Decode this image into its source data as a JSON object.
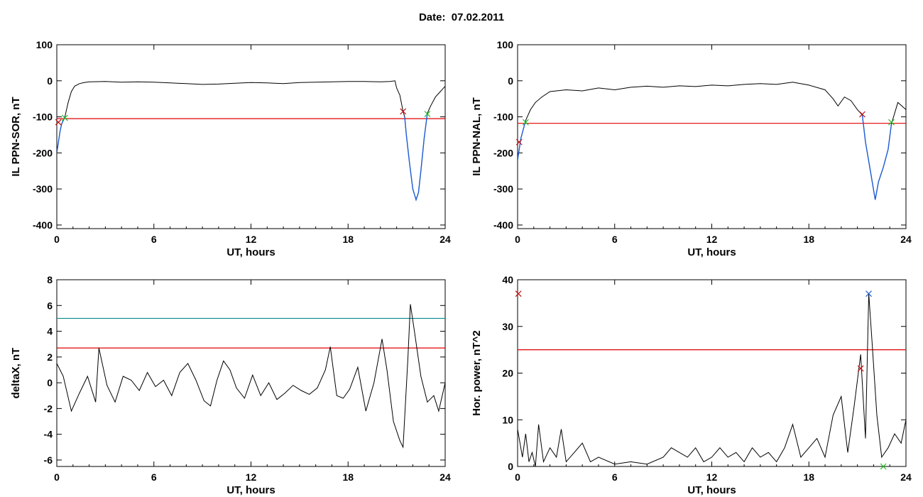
{
  "header": {
    "title": "Date:  07.02.2011"
  },
  "colors": {
    "curve": "#000000",
    "threshold_red": "#e00000",
    "threshold_teal": "#0a8c8c",
    "highlight_blue": "#1f5fd6",
    "marker_red": "#c01010",
    "marker_green": "#22bb22",
    "marker_blue": "#1f5fd6"
  },
  "chart_data": [
    {
      "type": "line",
      "xlabel": "UT, hours",
      "ylabel": "IL PPN-SOR, nT",
      "xlim": [
        0,
        24
      ],
      "ylim": [
        -410,
        100
      ],
      "xticks": [
        0,
        6,
        12,
        18,
        24
      ],
      "yticks": [
        100,
        0,
        -100,
        -200,
        -300,
        -400
      ],
      "series": [
        {
          "values": [
            [
              0,
              -200
            ],
            [
              0.1,
              -170
            ],
            [
              0.2,
              -140
            ],
            [
              0.3,
              -120
            ],
            [
              0.5,
              -100
            ],
            [
              0.7,
              -60
            ],
            [
              0.9,
              -30
            ],
            [
              1.1,
              -15
            ],
            [
              1.4,
              -8
            ],
            [
              1.7,
              -5
            ],
            [
              2,
              -3
            ],
            [
              3,
              -2
            ],
            [
              4,
              -4
            ],
            [
              5,
              -3
            ],
            [
              6,
              -4
            ],
            [
              7,
              -6
            ],
            [
              8,
              -8
            ],
            [
              9,
              -10
            ],
            [
              10,
              -9
            ],
            [
              11,
              -7
            ],
            [
              12,
              -5
            ],
            [
              13,
              -6
            ],
            [
              14,
              -8
            ],
            [
              15,
              -5
            ],
            [
              16,
              -4
            ],
            [
              17,
              -3
            ],
            [
              18,
              -2
            ],
            [
              19,
              -2
            ],
            [
              20,
              -3
            ],
            [
              20.6,
              -2
            ],
            [
              20.9,
              0
            ],
            [
              21.0,
              -20
            ],
            [
              21.2,
              -40
            ],
            [
              21.4,
              -85
            ],
            [
              21.5,
              -100
            ],
            [
              21.6,
              -150
            ],
            [
              21.8,
              -230
            ],
            [
              22.0,
              -300
            ],
            [
              22.2,
              -330
            ],
            [
              22.35,
              -310
            ],
            [
              22.5,
              -250
            ],
            [
              22.7,
              -160
            ],
            [
              22.9,
              -90
            ],
            [
              23.1,
              -70
            ],
            [
              23.4,
              -45
            ],
            [
              23.7,
              -30
            ],
            [
              24,
              -15
            ]
          ]
        }
      ],
      "threshold": -105
    },
    {
      "type": "line",
      "xlabel": "UT, hours",
      "ylabel": "IL PPN-NAL, nT",
      "xlim": [
        0,
        24
      ],
      "ylim": [
        -410,
        100
      ],
      "xticks": [
        0,
        6,
        12,
        18,
        24
      ],
      "yticks": [
        100,
        0,
        -100,
        -200,
        -300,
        -400
      ],
      "series": [
        {
          "values": [
            [
              0,
              -220
            ],
            [
              0.2,
              -160
            ],
            [
              0.5,
              -110
            ],
            [
              0.8,
              -80
            ],
            [
              1.1,
              -60
            ],
            [
              1.5,
              -45
            ],
            [
              2,
              -30
            ],
            [
              3,
              -25
            ],
            [
              4,
              -28
            ],
            [
              5,
              -20
            ],
            [
              6,
              -25
            ],
            [
              7,
              -18
            ],
            [
              8,
              -15
            ],
            [
              9,
              -18
            ],
            [
              10,
              -14
            ],
            [
              11,
              -16
            ],
            [
              12,
              -12
            ],
            [
              13,
              -14
            ],
            [
              14,
              -10
            ],
            [
              15,
              -8
            ],
            [
              16,
              -10
            ],
            [
              17,
              -4
            ],
            [
              18,
              -12
            ],
            [
              19,
              -25
            ],
            [
              19.5,
              -50
            ],
            [
              19.8,
              -70
            ],
            [
              20.2,
              -45
            ],
            [
              20.6,
              -55
            ],
            [
              21.0,
              -80
            ],
            [
              21.3,
              -95
            ],
            [
              21.5,
              -170
            ],
            [
              21.8,
              -250
            ],
            [
              22.1,
              -330
            ],
            [
              22.3,
              -280
            ],
            [
              22.6,
              -240
            ],
            [
              22.9,
              -190
            ],
            [
              23.1,
              -120
            ],
            [
              23.5,
              -60
            ],
            [
              24,
              -80
            ]
          ]
        }
      ],
      "threshold": -118
    },
    {
      "type": "line",
      "xlabel": "UT, hours",
      "ylabel": "deltaX, nT",
      "xlim": [
        0,
        24
      ],
      "ylim": [
        -6.5,
        8
      ],
      "xticks": [
        0,
        6,
        12,
        18,
        24
      ],
      "yticks": [
        8,
        6,
        4,
        2,
        0,
        -2,
        -4,
        -6
      ],
      "series": [
        {
          "values": [
            [
              0,
              1.5
            ],
            [
              0.4,
              0.5
            ],
            [
              0.9,
              -2.2
            ],
            [
              1.4,
              -0.8
            ],
            [
              1.9,
              0.5
            ],
            [
              2.4,
              -1.5
            ],
            [
              2.6,
              2.7
            ],
            [
              3.1,
              -0.2
            ],
            [
              3.6,
              -1.5
            ],
            [
              4.1,
              0.5
            ],
            [
              4.6,
              0.2
            ],
            [
              5.1,
              -0.6
            ],
            [
              5.6,
              0.8
            ],
            [
              6.1,
              -0.3
            ],
            [
              6.6,
              0.2
            ],
            [
              7.1,
              -1.0
            ],
            [
              7.6,
              0.8
            ],
            [
              8.1,
              1.5
            ],
            [
              8.6,
              0.2
            ],
            [
              9.1,
              -1.4
            ],
            [
              9.5,
              -1.8
            ],
            [
              9.9,
              0.2
            ],
            [
              10.3,
              1.7
            ],
            [
              10.7,
              1.0
            ],
            [
              11.1,
              -0.4
            ],
            [
              11.6,
              -1.2
            ],
            [
              12.1,
              0.6
            ],
            [
              12.6,
              -1.0
            ],
            [
              13.1,
              0.0
            ],
            [
              13.6,
              -1.3
            ],
            [
              14.1,
              -0.8
            ],
            [
              14.6,
              -0.2
            ],
            [
              15.1,
              -0.6
            ],
            [
              15.6,
              -0.9
            ],
            [
              16.1,
              -0.4
            ],
            [
              16.6,
              1.0
            ],
            [
              16.9,
              2.8
            ],
            [
              17.3,
              -1.0
            ],
            [
              17.7,
              -1.2
            ],
            [
              18.1,
              -0.5
            ],
            [
              18.6,
              1.2
            ],
            [
              19.1,
              -2.2
            ],
            [
              19.6,
              0.0
            ],
            [
              20.1,
              3.4
            ],
            [
              20.4,
              1.0
            ],
            [
              20.8,
              -3.0
            ],
            [
              21.2,
              -4.5
            ],
            [
              21.4,
              -5.0
            ],
            [
              21.7,
              2.0
            ],
            [
              21.85,
              6.1
            ],
            [
              22.1,
              4.0
            ],
            [
              22.5,
              0.5
            ],
            [
              22.9,
              -1.5
            ],
            [
              23.3,
              -1.0
            ],
            [
              23.6,
              -2.2
            ],
            [
              24,
              0.0
            ]
          ]
        }
      ],
      "thresholds": [
        5.0,
        2.7
      ]
    },
    {
      "type": "line",
      "xlabel": "UT, hours",
      "ylabel": "Hor. power, nT^2",
      "xlim": [
        0,
        24
      ],
      "ylim": [
        0,
        40
      ],
      "xticks": [
        0,
        6,
        12,
        18,
        24
      ],
      "yticks": [
        40,
        30,
        20,
        10,
        0
      ],
      "series": [
        {
          "values": [
            [
              0,
              8
            ],
            [
              0.3,
              2
            ],
            [
              0.5,
              7
            ],
            [
              0.7,
              1
            ],
            [
              0.9,
              3
            ],
            [
              1.1,
              0
            ],
            [
              1.3,
              9
            ],
            [
              1.6,
              1
            ],
            [
              2,
              4
            ],
            [
              2.4,
              2
            ],
            [
              2.7,
              8
            ],
            [
              3,
              1
            ],
            [
              3.5,
              3
            ],
            [
              4,
              5
            ],
            [
              4.5,
              1
            ],
            [
              5,
              2
            ],
            [
              6,
              0.5
            ],
            [
              7,
              1
            ],
            [
              8,
              0.5
            ],
            [
              9,
              2
            ],
            [
              9.5,
              4
            ],
            [
              10,
              3
            ],
            [
              10.5,
              2
            ],
            [
              11,
              4
            ],
            [
              11.5,
              1
            ],
            [
              12,
              2
            ],
            [
              12.5,
              4
            ],
            [
              13,
              2
            ],
            [
              13.5,
              3
            ],
            [
              14,
              1
            ],
            [
              14.5,
              4
            ],
            [
              15,
              2
            ],
            [
              15.5,
              3
            ],
            [
              16,
              1
            ],
            [
              16.5,
              4
            ],
            [
              17,
              9
            ],
            [
              17.5,
              2
            ],
            [
              18,
              4
            ],
            [
              18.5,
              6
            ],
            [
              19,
              2
            ],
            [
              19.5,
              11
            ],
            [
              20,
              15
            ],
            [
              20.4,
              3
            ],
            [
              20.8,
              13
            ],
            [
              21.2,
              24
            ],
            [
              21.5,
              6
            ],
            [
              21.7,
              37
            ],
            [
              21.9,
              27
            ],
            [
              22.2,
              11
            ],
            [
              22.5,
              2
            ],
            [
              22.9,
              4
            ],
            [
              23.3,
              7
            ],
            [
              23.7,
              5
            ],
            [
              24,
              10
            ]
          ]
        }
      ],
      "threshold": 25
    }
  ]
}
